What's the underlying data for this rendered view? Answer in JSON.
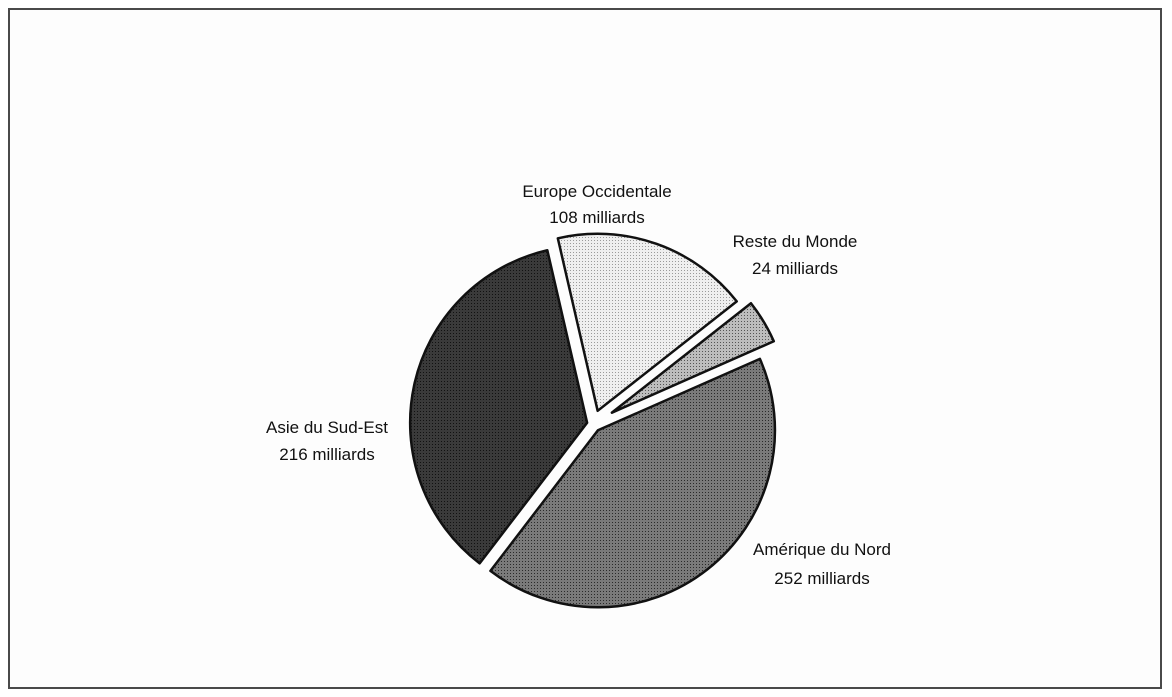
{
  "chart_data": {
    "type": "pie",
    "slices": [
      {
        "label": "Europe Occidentale",
        "value_text": "108 milliards",
        "value": 108,
        "color": "#e6e6e6"
      },
      {
        "label": "Reste du Monde",
        "value_text": "24 milliards",
        "value": 24,
        "color": "#a8a8a8"
      },
      {
        "label": "Amérique du Nord",
        "value_text": "252 milliards",
        "value": 252,
        "color": "#6e6e6e"
      },
      {
        "label": "Asie du Sud-Est",
        "value_text": "216 milliards",
        "value": 216,
        "color": "#333333"
      }
    ],
    "unit": "milliards",
    "exploded": true,
    "legend": "none"
  }
}
